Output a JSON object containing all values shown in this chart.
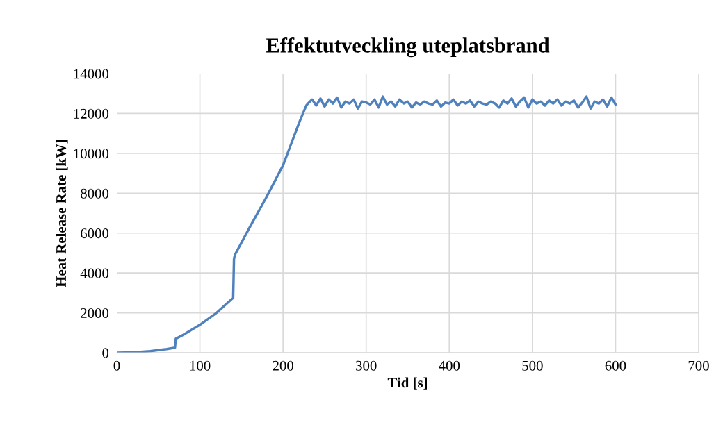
{
  "chart_data": {
    "type": "line",
    "title": "Effektutveckling uteplatsbrand",
    "xlabel": "Tid [s]",
    "ylabel": "Heat Release Rate [kW]",
    "series": [
      {
        "color": "#4f81bd",
        "x": [
          0,
          20,
          40,
          60,
          70,
          71,
          80,
          100,
          120,
          140,
          141,
          142,
          160,
          180,
          200,
          210,
          220,
          228,
          230,
          235,
          240,
          245,
          250,
          255,
          260,
          265,
          270,
          275,
          280,
          285,
          290,
          295,
          300,
          305,
          310,
          315,
          320,
          325,
          330,
          335,
          340,
          345,
          350,
          355,
          360,
          365,
          370,
          375,
          380,
          385,
          390,
          395,
          400,
          405,
          410,
          415,
          420,
          425,
          430,
          435,
          440,
          445,
          450,
          455,
          460,
          465,
          470,
          475,
          480,
          485,
          490,
          495,
          500,
          505,
          510,
          515,
          520,
          525,
          530,
          535,
          540,
          545,
          550,
          555,
          560,
          565,
          570,
          575,
          580,
          585,
          590,
          595,
          600
        ],
        "values": [
          0,
          20,
          80,
          180,
          250,
          700,
          900,
          1400,
          2000,
          2750,
          4700,
          4900,
          6300,
          7800,
          9400,
          10500,
          11600,
          12400,
          12500,
          12700,
          12400,
          12750,
          12350,
          12700,
          12500,
          12800,
          12300,
          12600,
          12500,
          12700,
          12250,
          12600,
          12550,
          12450,
          12700,
          12300,
          12850,
          12450,
          12600,
          12350,
          12700,
          12500,
          12600,
          12300,
          12550,
          12450,
          12600,
          12500,
          12450,
          12650,
          12350,
          12550,
          12500,
          12700,
          12400,
          12600,
          12500,
          12650,
          12350,
          12600,
          12500,
          12450,
          12600,
          12500,
          12300,
          12650,
          12500,
          12750,
          12350,
          12600,
          12800,
          12300,
          12700,
          12500,
          12600,
          12400,
          12650,
          12500,
          12700,
          12400,
          12600,
          12500,
          12650,
          12300,
          12550,
          12850,
          12250,
          12600,
          12500,
          12700,
          12350,
          12800,
          12450
        ]
      }
    ],
    "xlim": [
      0,
      700
    ],
    "xticks": [
      0,
      100,
      200,
      300,
      400,
      500,
      600,
      700
    ],
    "ylim": [
      0,
      14000
    ],
    "yticks": [
      0,
      2000,
      4000,
      6000,
      8000,
      10000,
      12000,
      14000
    ],
    "grid": true,
    "marker": "none",
    "line_style": "solid"
  }
}
